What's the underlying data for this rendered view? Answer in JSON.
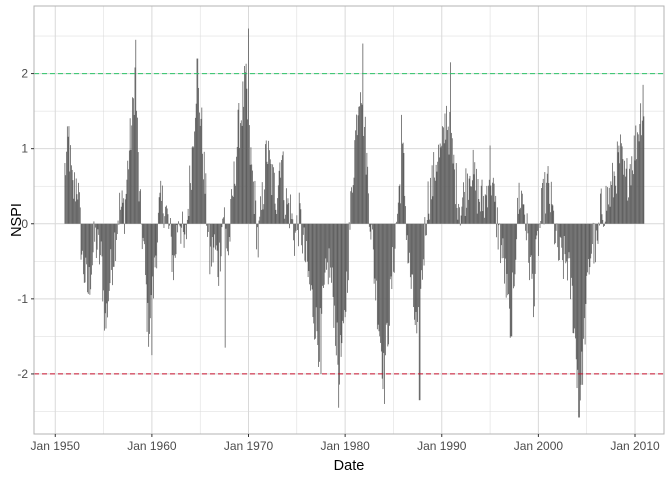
{
  "chart_data": {
    "type": "bar",
    "xlabel": "Date",
    "ylabel": "NSPI",
    "x_unit": "year",
    "xlim": [
      1947.8,
      2013.0
    ],
    "ylim": [
      -2.8,
      2.9
    ],
    "x_ticks": [
      {
        "value": 1950,
        "label": "Jan 1950"
      },
      {
        "value": 1960,
        "label": "Jan 1960"
      },
      {
        "value": 1970,
        "label": "Jan 1970"
      },
      {
        "value": 1980,
        "label": "Jan 1980"
      },
      {
        "value": 1990,
        "label": "Jan 1990"
      },
      {
        "value": 2000,
        "label": "Jan 2000"
      },
      {
        "value": 2010,
        "label": "Jan 2010"
      }
    ],
    "y_ticks": [
      {
        "value": -2,
        "label": "-2"
      },
      {
        "value": -1,
        "label": "-1"
      },
      {
        "value": 0,
        "label": "0"
      },
      {
        "value": 1,
        "label": "1"
      },
      {
        "value": 2,
        "label": "2"
      }
    ],
    "grid": true,
    "reference_lines": [
      {
        "y": 2,
        "color": "#2ec46a",
        "style": "dashed"
      },
      {
        "y": -2,
        "color": "#c8102e",
        "style": "dashed"
      }
    ],
    "bar_color": "#595959",
    "panel_grid_color": "#d9d9d9",
    "panel_border_color": "#b3b3b3",
    "series_start": "1951-01",
    "series_step_months": 1,
    "shape_profile": [
      [
        1951.0,
        0.7
      ],
      [
        1951.4,
        1.1
      ],
      [
        1951.8,
        0.4
      ],
      [
        1952.3,
        0.6
      ],
      [
        1952.8,
        -0.5
      ],
      [
        1953.4,
        -0.9
      ],
      [
        1954.1,
        -0.2
      ],
      [
        1954.8,
        -0.5
      ],
      [
        1955.2,
        -1.4
      ],
      [
        1955.6,
        -0.8
      ],
      [
        1956.0,
        -0.4
      ],
      [
        1956.6,
        0.2
      ],
      [
        1957.2,
        0.2
      ],
      [
        1957.6,
        0.9
      ],
      [
        1958.0,
        1.4
      ],
      [
        1958.3,
        2.1
      ],
      [
        1958.7,
        0.3
      ],
      [
        1959.2,
        -0.4
      ],
      [
        1959.6,
        -1.4
      ],
      [
        1960.0,
        -1.1
      ],
      [
        1960.4,
        -0.4
      ],
      [
        1960.8,
        0.2
      ],
      [
        1961.3,
        0.3
      ],
      [
        1961.8,
        -0.1
      ],
      [
        1962.3,
        -0.6
      ],
      [
        1962.8,
        0.2
      ],
      [
        1963.4,
        -0.4
      ],
      [
        1963.8,
        0.3
      ],
      [
        1964.2,
        1.0
      ],
      [
        1964.6,
        1.9
      ],
      [
        1965.1,
        1.4
      ],
      [
        1965.5,
        0.5
      ],
      [
        1966.0,
        -0.5
      ],
      [
        1966.5,
        -0.3
      ],
      [
        1966.9,
        -0.6
      ],
      [
        1967.4,
        0.2
      ],
      [
        1967.9,
        -0.4
      ],
      [
        1968.4,
        0.4
      ],
      [
        1968.9,
        1.2
      ],
      [
        1969.3,
        1.5
      ],
      [
        1969.7,
        1.9
      ],
      [
        1970.1,
        1.0
      ],
      [
        1970.6,
        0.4
      ],
      [
        1971.0,
        -0.3
      ],
      [
        1971.5,
        0.4
      ],
      [
        1971.9,
        1.0
      ],
      [
        1972.4,
        0.6
      ],
      [
        1972.9,
        0.4
      ],
      [
        1973.4,
        1.0
      ],
      [
        1973.8,
        0.3
      ],
      [
        1974.3,
        0.2
      ],
      [
        1974.8,
        -0.2
      ],
      [
        1975.3,
        0.1
      ],
      [
        1975.8,
        -0.4
      ],
      [
        1976.3,
        -0.8
      ],
      [
        1976.8,
        -1.2
      ],
      [
        1977.3,
        -1.6
      ],
      [
        1977.8,
        -1.0
      ],
      [
        1978.3,
        -0.5
      ],
      [
        1978.8,
        -1.0
      ],
      [
        1979.3,
        -1.9
      ],
      [
        1979.8,
        -1.6
      ],
      [
        1980.3,
        -0.5
      ],
      [
        1980.8,
        0.7
      ],
      [
        1981.2,
        1.4
      ],
      [
        1981.6,
        2.0
      ],
      [
        1982.0,
        1.3
      ],
      [
        1982.5,
        0.3
      ],
      [
        1983.0,
        -0.6
      ],
      [
        1983.5,
        -1.3
      ],
      [
        1984.0,
        -2.0
      ],
      [
        1984.5,
        -1.3
      ],
      [
        1985.0,
        -0.5
      ],
      [
        1985.5,
        0.3
      ],
      [
        1986.0,
        0.9
      ],
      [
        1986.5,
        -0.4
      ],
      [
        1987.0,
        -1.0
      ],
      [
        1987.5,
        -1.6
      ],
      [
        1988.0,
        -0.6
      ],
      [
        1988.5,
        0.3
      ],
      [
        1989.0,
        0.5
      ],
      [
        1989.5,
        0.9
      ],
      [
        1990.0,
        0.9
      ],
      [
        1990.5,
        1.5
      ],
      [
        1991.0,
        1.0
      ],
      [
        1991.5,
        0.5
      ],
      [
        1992.0,
        0.2
      ],
      [
        1992.5,
        0.5
      ],
      [
        1993.0,
        0.8
      ],
      [
        1993.5,
        0.5
      ],
      [
        1994.0,
        0.3
      ],
      [
        1994.5,
        0.3
      ],
      [
        1995.0,
        0.8
      ],
      [
        1995.5,
        0.2
      ],
      [
        1996.0,
        -0.2
      ],
      [
        1996.5,
        -0.6
      ],
      [
        1997.0,
        -1.3
      ],
      [
        1997.5,
        -0.6
      ],
      [
        1998.0,
        0.4
      ],
      [
        1998.5,
        0.3
      ],
      [
        1999.0,
        -0.4
      ],
      [
        1999.5,
        -0.9
      ],
      [
        2000.0,
        -0.2
      ],
      [
        2000.5,
        0.3
      ],
      [
        2001.0,
        0.5
      ],
      [
        2001.5,
        0.1
      ],
      [
        2002.0,
        -0.4
      ],
      [
        2002.5,
        -0.5
      ],
      [
        2003.0,
        -0.5
      ],
      [
        2003.5,
        -1.0
      ],
      [
        2004.0,
        -1.9
      ],
      [
        2004.4,
        -2.2
      ],
      [
        2004.8,
        -1.4
      ],
      [
        2005.2,
        -0.6
      ],
      [
        2005.6,
        -0.2
      ],
      [
        2006.1,
        -0.4
      ],
      [
        2006.5,
        0.2
      ],
      [
        2007.0,
        0.3
      ],
      [
        2007.5,
        0.4
      ],
      [
        2008.0,
        0.7
      ],
      [
        2008.5,
        0.9
      ],
      [
        2009.0,
        0.5
      ],
      [
        2009.5,
        0.8
      ],
      [
        2010.0,
        1.0
      ],
      [
        2010.5,
        1.4
      ],
      [
        2010.8,
        1.6
      ]
    ],
    "spikes": [
      [
        1951.4,
        1.3
      ],
      [
        1958.3,
        2.45
      ],
      [
        1960.0,
        -1.75
      ],
      [
        1964.7,
        2.2
      ],
      [
        1967.6,
        -1.65
      ],
      [
        1970.0,
        2.6
      ],
      [
        1977.5,
        -2.0
      ],
      [
        1979.3,
        -2.45
      ],
      [
        1981.8,
        2.4
      ],
      [
        1984.1,
        -2.4
      ],
      [
        1985.8,
        1.45
      ],
      [
        1987.7,
        -2.35
      ],
      [
        1990.9,
        2.15
      ],
      [
        1997.2,
        -1.5
      ],
      [
        1999.6,
        -1.1
      ],
      [
        2004.2,
        -2.58
      ],
      [
        2010.8,
        1.85
      ]
    ]
  }
}
